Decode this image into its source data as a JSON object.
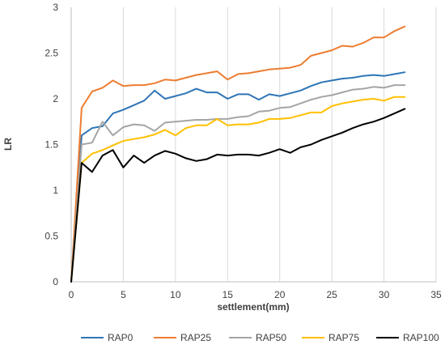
{
  "chart_data": {
    "type": "line",
    "xlabel": "settlement(mm)",
    "ylabel": "LR",
    "xlim": [
      0,
      35
    ],
    "ylim": [
      0,
      3
    ],
    "x_ticks": [
      "0",
      "5",
      "10",
      "15",
      "20",
      "25",
      "30",
      "35"
    ],
    "y_ticks": [
      "0",
      "0.5",
      "1",
      "1.5",
      "2",
      "2.5",
      "3"
    ],
    "grid": "vertical",
    "legend_position": "bottom",
    "series": [
      {
        "name": "RAP0",
        "color": "#2E75B6",
        "x": [
          0,
          1,
          2,
          3,
          4,
          5,
          6,
          7,
          8,
          9,
          10,
          11,
          12,
          13,
          14,
          15,
          16,
          17,
          18,
          19,
          20,
          21,
          22,
          23,
          24,
          25,
          26,
          27,
          28,
          29,
          30,
          31,
          32
        ],
        "values": [
          0,
          1.6,
          1.68,
          1.7,
          1.84,
          1.88,
          1.93,
          1.98,
          2.09,
          2.0,
          2.03,
          2.06,
          2.11,
          2.07,
          2.07,
          2.0,
          2.05,
          2.05,
          1.99,
          2.05,
          2.03,
          2.06,
          2.09,
          2.14,
          2.18,
          2.2,
          2.22,
          2.23,
          2.25,
          2.26,
          2.25,
          2.27,
          2.29
        ]
      },
      {
        "name": "RAP25",
        "color": "#ED7D31",
        "x": [
          0,
          1,
          2,
          3,
          4,
          5,
          6,
          7,
          8,
          9,
          10,
          11,
          12,
          13,
          14,
          15,
          16,
          17,
          18,
          19,
          20,
          21,
          22,
          23,
          24,
          25,
          26,
          27,
          28,
          29,
          30,
          31,
          32
        ],
        "values": [
          0,
          1.9,
          2.08,
          2.12,
          2.2,
          2.14,
          2.15,
          2.15,
          2.17,
          2.21,
          2.2,
          2.23,
          2.26,
          2.28,
          2.3,
          2.21,
          2.27,
          2.28,
          2.3,
          2.32,
          2.33,
          2.34,
          2.37,
          2.47,
          2.5,
          2.53,
          2.58,
          2.57,
          2.61,
          2.67,
          2.67,
          2.74,
          2.79
        ]
      },
      {
        "name": "RAP50",
        "color": "#A5A5A5",
        "x": [
          0,
          1,
          2,
          3,
          4,
          5,
          6,
          7,
          8,
          9,
          10,
          11,
          12,
          13,
          14,
          15,
          16,
          17,
          18,
          19,
          20,
          21,
          22,
          23,
          24,
          25,
          26,
          27,
          28,
          29,
          30,
          31,
          32
        ],
        "values": [
          0,
          1.5,
          1.52,
          1.75,
          1.6,
          1.69,
          1.72,
          1.71,
          1.65,
          1.74,
          1.75,
          1.76,
          1.77,
          1.77,
          1.78,
          1.78,
          1.8,
          1.81,
          1.86,
          1.87,
          1.9,
          1.91,
          1.95,
          1.99,
          2.02,
          2.04,
          2.07,
          2.1,
          2.11,
          2.13,
          2.12,
          2.15,
          2.15
        ]
      },
      {
        "name": "RAP75",
        "color": "#FFC000",
        "x": [
          0,
          1,
          2,
          3,
          4,
          5,
          6,
          7,
          8,
          9,
          10,
          11,
          12,
          13,
          14,
          15,
          16,
          17,
          18,
          19,
          20,
          21,
          22,
          23,
          24,
          25,
          26,
          27,
          28,
          29,
          30,
          31,
          32
        ],
        "values": [
          0,
          1.3,
          1.4,
          1.44,
          1.49,
          1.54,
          1.56,
          1.58,
          1.61,
          1.66,
          1.6,
          1.68,
          1.71,
          1.71,
          1.78,
          1.71,
          1.72,
          1.72,
          1.74,
          1.78,
          1.78,
          1.79,
          1.82,
          1.85,
          1.85,
          1.92,
          1.95,
          1.97,
          1.99,
          2.0,
          1.98,
          2.02,
          2.02
        ]
      },
      {
        "name": "RAP100",
        "color": "#000000",
        "x": [
          0,
          1,
          2,
          3,
          4,
          5,
          6,
          7,
          8,
          9,
          10,
          11,
          12,
          13,
          14,
          15,
          16,
          17,
          18,
          19,
          20,
          21,
          22,
          23,
          24,
          25,
          26,
          27,
          28,
          29,
          30,
          31,
          32
        ],
        "values": [
          0,
          1.3,
          1.2,
          1.38,
          1.44,
          1.25,
          1.38,
          1.3,
          1.38,
          1.43,
          1.4,
          1.35,
          1.32,
          1.34,
          1.39,
          1.38,
          1.39,
          1.39,
          1.38,
          1.41,
          1.45,
          1.41,
          1.47,
          1.5,
          1.55,
          1.59,
          1.63,
          1.68,
          1.72,
          1.75,
          1.79,
          1.84,
          1.89
        ]
      }
    ]
  }
}
